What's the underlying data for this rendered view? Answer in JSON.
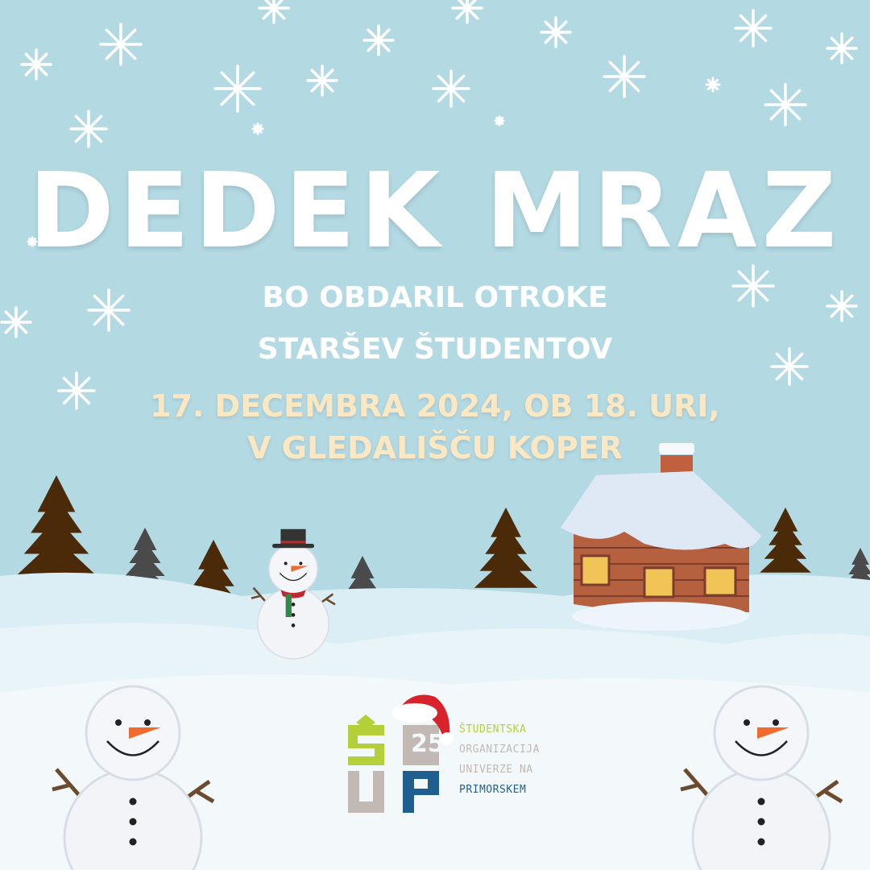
{
  "poster": {
    "title": "DEDEK MRAZ",
    "subtitle_line1": "BO OBDARIL OTROKE",
    "subtitle_line2": "STARŠEV ŠTUDENTOV",
    "date_line1": "17. DECEMBRA 2024, OB 18. URI,",
    "date_line2": "V GLEDALIŠČU KOPER"
  },
  "logo": {
    "mark": "ŠUP 25",
    "line1": "ŠTUDENTSKA",
    "line2": "ORGANIZACIJA",
    "line3": "UNIVERZE NA",
    "line4": "PRIMORSKEM"
  },
  "colors": {
    "sky": "#b3d9e3",
    "title": "#ffffff",
    "date": "#fbe8c2",
    "logo_green": "#b5cf3a",
    "logo_grey": "#c2b8b4",
    "logo_blue": "#1f5f8f"
  }
}
